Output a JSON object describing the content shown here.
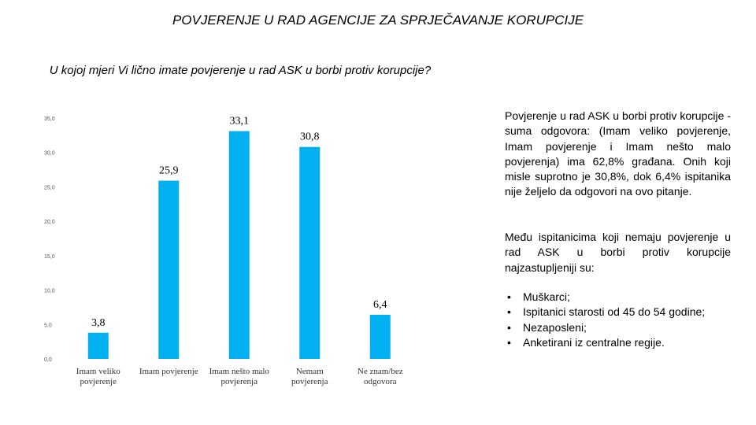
{
  "page": {
    "title": "POVJERENJE U RAD AGENCIJE ZA SPRJEČAVANJE KORUPCIJE",
    "subtitle": "U kojoj mjeri Vi lično imate povjerenje u rad ASK u borbi protiv korupcije?"
  },
  "chart_data": {
    "type": "bar",
    "title": "U kojoj mjeri Vi lično imate povjerenje u rad ASK u borbi protiv korupcije?",
    "categories": [
      [
        "Imam veliko",
        "povjerenje"
      ],
      [
        "Imam povjerenje"
      ],
      [
        "Imam nešto malo",
        "povjerenja"
      ],
      [
        "Nemam",
        "povjerenja"
      ],
      [
        "Ne znam/bez",
        "odgovora"
      ]
    ],
    "values": [
      3.8,
      25.9,
      33.1,
      30.8,
      6.4
    ],
    "value_labels": [
      "3,8",
      "25,9",
      "33,1",
      "30,8",
      "6,4"
    ],
    "yticks": [
      0,
      5,
      10,
      15,
      20,
      25,
      30,
      35
    ],
    "ytick_labels": [
      "0,0",
      "5,0",
      "10,0",
      "15,0",
      "20,0",
      "25,0",
      "30,0",
      "35,0"
    ],
    "ylim": [
      0,
      35
    ],
    "bar_color": "#00b0f0",
    "xlabel": "",
    "ylabel": ""
  },
  "sidebar": {
    "paragraph1": "Povjerenje u rad ASK u borbi protiv korupcije - suma odgovora: (Imam veliko povjerenje, Imam povjerenje i Imam nešto malo povjerenja) ima 62,8% građana. Onih koji misle suprotno je 30,8%, dok 6,4% ispitanika nije željelo da odgovori na ovo pitanje.",
    "paragraph2": "Među ispitanicima koji nemaju povjerenje u rad ASK u borbi protiv korupcije najzastupljeniji su:",
    "bullet_char": "•",
    "bullets": [
      "Muškarci;",
      "Ispitanici starosti od 45 do 54 godine;",
      "Nezaposleni;",
      "Anketirani iz centralne regije."
    ]
  }
}
